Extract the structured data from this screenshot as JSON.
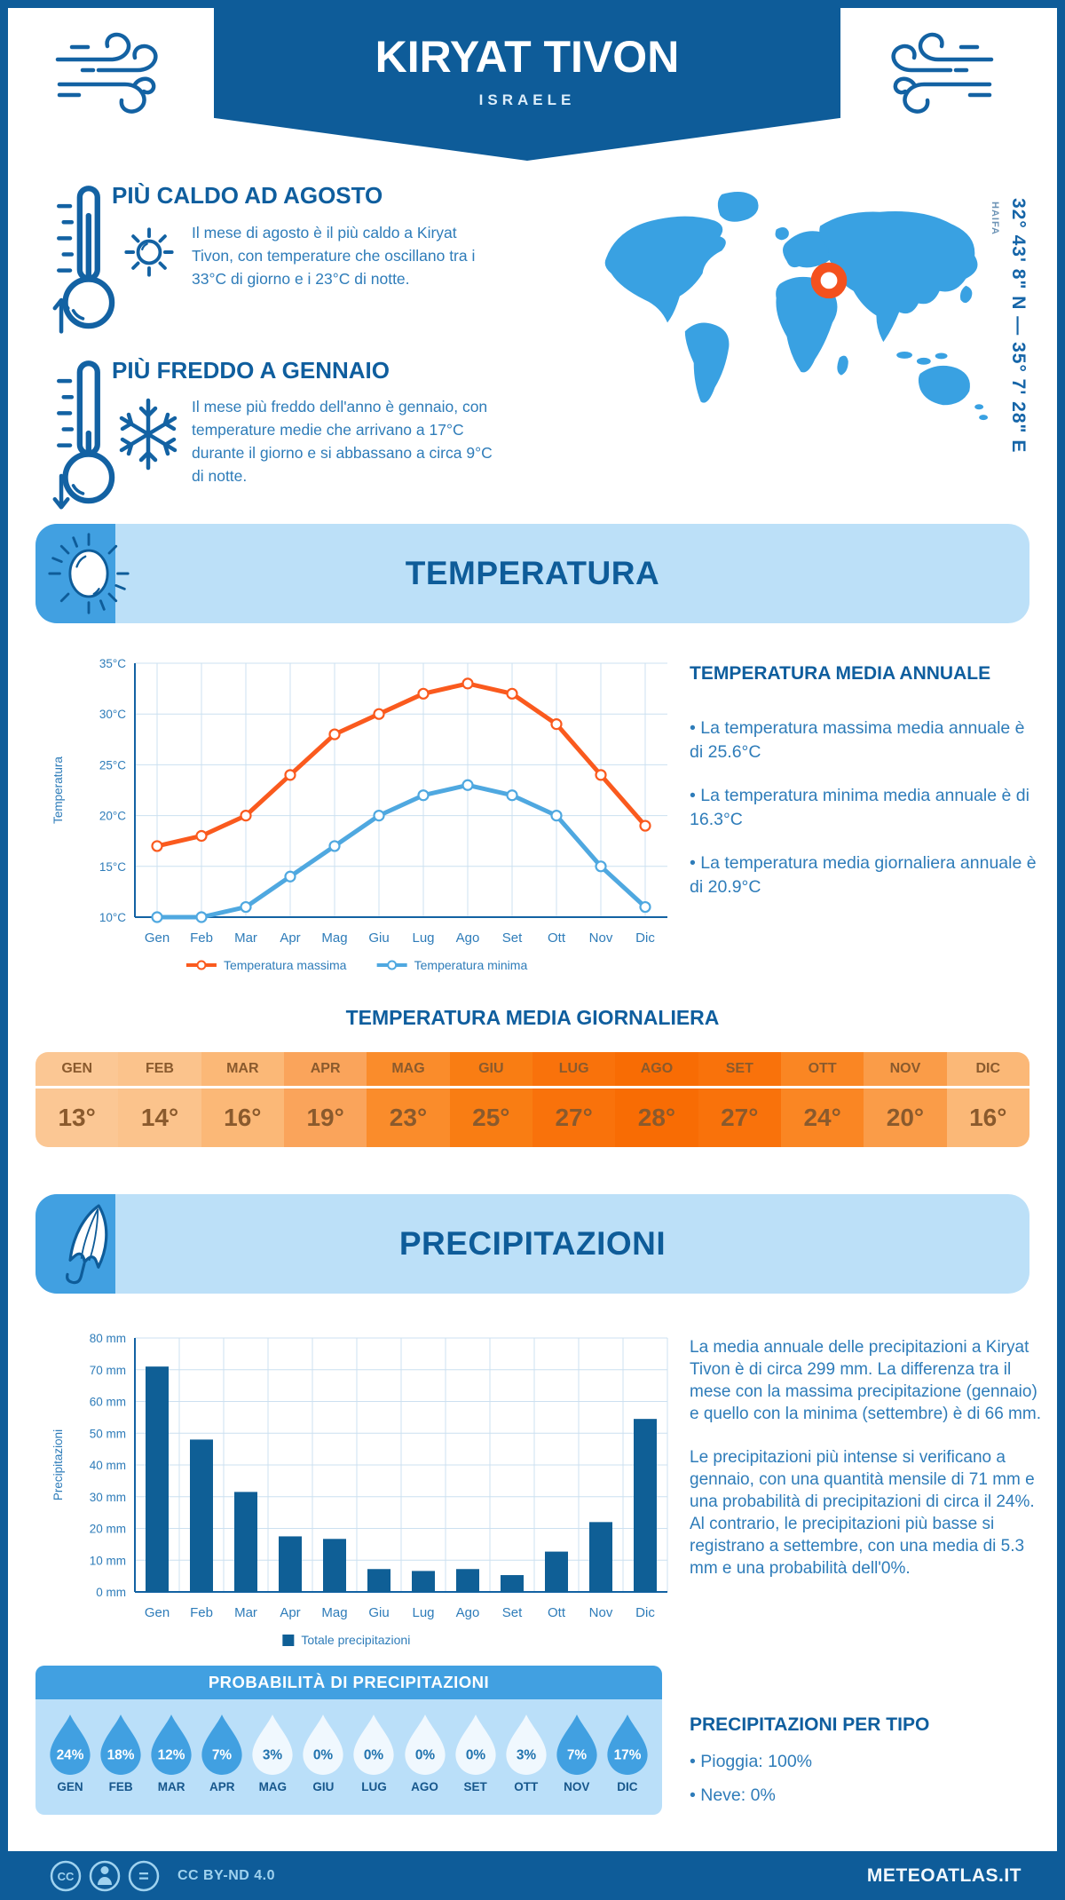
{
  "header": {
    "title": "KIRYAT TIVON",
    "subtitle": "ISRAELE"
  },
  "highlights": [
    {
      "title": "PIÙ CALDO AD AGOSTO",
      "text": "Il mese di agosto è il più caldo a Kiryat Tivon, con temperature che oscillano tra i 33°C di giorno e i 23°C di notte."
    },
    {
      "title": "PIÙ FREDDO A GENNAIO",
      "text": "Il mese più freddo dell'anno è gennaio, con temperature medie che arrivano a 17°C durante il giorno e si abbassano a circa 9°C di notte."
    }
  ],
  "map": {
    "nearby": "HAIFA",
    "coordinates": "32° 43' 8\" N — 35° 7' 28\" E",
    "marker_color": "#F4511E",
    "land_color": "#39A1E2"
  },
  "sections": {
    "temperature": "TEMPERATURA",
    "precipitation": "PRECIPITAZIONI"
  },
  "chart_data": [
    {
      "type": "line",
      "categories": [
        "Gen",
        "Feb",
        "Mar",
        "Apr",
        "Mag",
        "Giu",
        "Lug",
        "Ago",
        "Set",
        "Ott",
        "Nov",
        "Dic"
      ],
      "series": [
        {
          "name": "Temperatura massima",
          "color": "#FA5A1E",
          "values": [
            17,
            18,
            20,
            24,
            28,
            30,
            32,
            33,
            32,
            29,
            24,
            19
          ]
        },
        {
          "name": "Temperatura minima",
          "color": "#4FA8E0",
          "values": [
            10,
            10,
            11,
            14,
            17,
            20,
            22,
            23,
            22,
            20,
            15,
            11
          ]
        }
      ],
      "ylabel": "Temperatura",
      "ytick_suffix": "°C",
      "ylim": [
        10,
        35
      ],
      "ystep": 5,
      "grid": true,
      "legend_position": "bottom"
    },
    {
      "type": "bar",
      "categories": [
        "Gen",
        "Feb",
        "Mar",
        "Apr",
        "Mag",
        "Giu",
        "Lug",
        "Ago",
        "Set",
        "Ott",
        "Nov",
        "Dic"
      ],
      "series": [
        {
          "name": "Totale precipitazioni",
          "color": "#0F5F96",
          "values": [
            71,
            48,
            31.5,
            17.5,
            16.7,
            7.2,
            6.6,
            7.2,
            5.3,
            12.7,
            22,
            54.5
          ]
        }
      ],
      "ylabel": "Precipitazioni",
      "ytick_suffix": " mm",
      "ylim": [
        0,
        80
      ],
      "ystep": 10,
      "grid": true,
      "legend_position": "bottom"
    }
  ],
  "annual": {
    "title": "TEMPERATURA MEDIA ANNUALE",
    "bullets": [
      "• La temperatura massima media annuale è di 25.6°C",
      "• La temperatura minima media annuale è di 16.3°C",
      "• La temperatura media giornaliera annuale è di 20.9°C"
    ]
  },
  "daily_mean": {
    "title": "TEMPERATURA MEDIA GIORNALIERA",
    "months": [
      "GEN",
      "FEB",
      "MAR",
      "APR",
      "MAG",
      "GIU",
      "LUG",
      "AGO",
      "SET",
      "OTT",
      "NOV",
      "DIC"
    ],
    "values": [
      "13°",
      "14°",
      "16°",
      "19°",
      "23°",
      "25°",
      "27°",
      "28°",
      "27°",
      "24°",
      "20°",
      "16°"
    ],
    "colors": [
      "#FBC794",
      "#FBC38C",
      "#FBB877",
      "#FAA45B",
      "#FA8C2B",
      "#F97D13",
      "#F9720B",
      "#F86C04",
      "#F9720B",
      "#FA8623",
      "#FA9C48",
      "#FBB877"
    ]
  },
  "precip_text": {
    "paragraphs": [
      "La media annuale delle precipitazioni a Kiryat Tivon è di circa 299 mm. La differenza tra il mese con la massima precipitazione (gennaio) e quello con la minima (settembre) è di 66 mm.",
      "Le precipitazioni più intense si verificano a gennaio, con una quantità mensile di 71 mm e una probabilità di precipitazioni di circa il 24%. Al contrario, le precipitazioni più basse si registrano a settembre, con una media di 5.3 mm e una probabilità dell'0%."
    ]
  },
  "precip_prob": {
    "title": "PROBABILITÀ DI PRECIPITAZIONI",
    "months": [
      "GEN",
      "FEB",
      "MAR",
      "APR",
      "MAG",
      "GIU",
      "LUG",
      "AGO",
      "SET",
      "OTT",
      "NOV",
      "DIC"
    ],
    "values": [
      "24%",
      "18%",
      "12%",
      "7%",
      "3%",
      "0%",
      "0%",
      "0%",
      "0%",
      "3%",
      "7%",
      "17%"
    ],
    "dark": [
      true,
      true,
      true,
      true,
      false,
      false,
      false,
      false,
      false,
      false,
      true,
      true
    ],
    "dark_fill": "#41A0E1",
    "light_fill": "#F0F8FE",
    "dark_text": "#FFFFFF",
    "light_text": "#2173AE"
  },
  "precip_type": {
    "title": "PRECIPITAZIONI PER TIPO",
    "bullets": [
      "• Pioggia: 100%",
      "• Neve: 0%"
    ]
  },
  "footer": {
    "license": "CC BY-ND 4.0",
    "brand": "METEOATLAS.IT"
  }
}
